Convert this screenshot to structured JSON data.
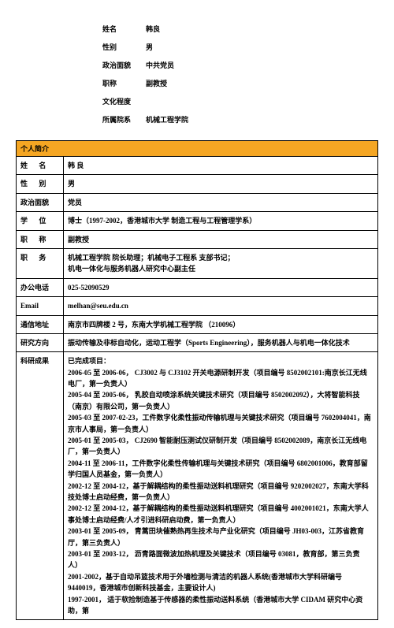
{
  "top": {
    "name_label": "姓名",
    "name": "韩良",
    "gender_label": "性别",
    "gender": "男",
    "politics_label": "政治面貌",
    "politics": "中共党员",
    "title_label": "职称",
    "title": "副教授",
    "education_label": "文化程度",
    "education": "",
    "department_label": "所属院系",
    "department": "机械工程学院"
  },
  "section_title": "个人简介",
  "rows": {
    "name_label": "姓　名",
    "name": "韩 良",
    "gender_label": "性　别",
    "gender": "男",
    "politics_label": "政治面貌",
    "politics": "党员",
    "degree_label": "学　位",
    "degree": "博士（1997-2002，香港城市大学  制造工程与工程管理学系）",
    "title_label": "职　称",
    "title": "副教授",
    "duty_label": "职　务",
    "duty": "机械工程学院 院长助理；机械电子工程系  支部书记；\n机电一体化与服务机器人研究中心副主任",
    "phone_label": "办公电话",
    "phone": "025-52090529",
    "email_label": "Email",
    "email": "melhan@seu.edu.cn",
    "address_label": "通信地址",
    "address": "南京市四牌楼 2 号，东南大学机械工程学院 （210096）",
    "research_label": "研究方向",
    "research": "振动传输及非标自动化，运动工程学（Sports Engineering），服务机器人与机电一体化技术",
    "achievements_label": "科研成果",
    "achievements": "已完成项目：\n2006-05 至 2006-06，  CJ3002 与 CJ3102 开关电源研制开发（项目编号 8502002101:南京长江无线电厂，第一负责人）\n2005-04 至 2005-06，  乳胶自动喷涂系统关键技术研究（项目编号 8502002092），大将智能科技（南京）有限公司，第一负责人）\n2005-03 至 2007-02-23，工件数字化柔性振动传输机理与关键技术研究（项目编号 7602004041，南京市人事局，第一负责人）\n2005-01 至 2005-03，  CJ2690 智能耐压测试仪研制开发（项目编号 8502002089，南京长江无线电厂，第一负责人）\n2004-11 至 2006-11，工件数字化柔性传输机理与关键技术研究（项目编号 6802001006，教育部留学归国人员基金，第一负责人）\n2002-12 至 2004-12，基于解耦结构的柔性振动送料机理研究（项目编号 9202002027，东南大学科技处博士启动经费，第一负责人）\n2002-12 至 2004-12，基于解耦结构的柔性振动送料机理研究（项目编号 4002001021，东南大学人事处博士启动经费/人才引进科研启动费，第一负责人）\n2003-01 至 2005-09，  青蒿田块催熟热再生技术与产业化研究（项目编号 JH03-003，江苏省教育厅，第三负责人）\n2003-01 至 2003-12，  沥青路面微波加热机理及关键技术（项目编号 03081，教育部，第三负责人）\n2001-2002，基于自动吊篮技术用于外墙检测与清洁的机器人系统(香港城市大学科研编号 9440019，香港城市创新科技基金，主要设计人)\n1997-2001，  适于软捡制造基于传感器的柔性振动送料系统（香港城市大学 CIDAM 研究中心资助，第"
  }
}
